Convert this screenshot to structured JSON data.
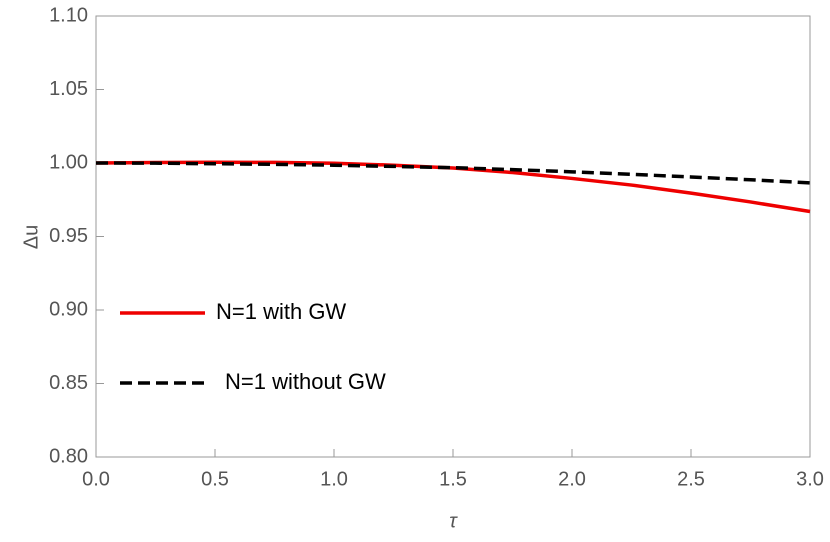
{
  "chart_data": {
    "type": "line",
    "xlabel": "τ",
    "ylabel": "Δu",
    "x": [
      0,
      0.25,
      0.5,
      0.75,
      1.0,
      1.25,
      1.5,
      1.75,
      2.0,
      2.25,
      2.5,
      2.75,
      3.0
    ],
    "series": [
      {
        "name": "N=1 with GW",
        "color": "#ee0000",
        "dash": false,
        "values": [
          1.0,
          1.0003,
          1.0005,
          1.0004,
          0.9998,
          0.9985,
          0.9966,
          0.9935,
          0.9895,
          0.985,
          0.9795,
          0.9735,
          0.967
        ]
      },
      {
        "name": "N=1 without GW",
        "color": "#000000",
        "dash": true,
        "values": [
          1.0,
          0.9999,
          0.9995,
          0.9991,
          0.9985,
          0.9977,
          0.9968,
          0.9955,
          0.994,
          0.9923,
          0.9905,
          0.9886,
          0.9865
        ]
      }
    ],
    "xlim": [
      0,
      3
    ],
    "ylim": [
      0.8,
      1.1
    ],
    "xticks": [
      {
        "value": 0,
        "label": "0.0"
      },
      {
        "value": 0.5,
        "label": "0.5"
      },
      {
        "value": 1,
        "label": "1.0"
      },
      {
        "value": 1.5,
        "label": "1.5"
      },
      {
        "value": 2,
        "label": "2.0"
      },
      {
        "value": 2.5,
        "label": "2.5"
      },
      {
        "value": 3,
        "label": "3.0"
      }
    ],
    "yticks": [
      {
        "value": 0.8,
        "label": "0.80"
      },
      {
        "value": 0.85,
        "label": "0.85"
      },
      {
        "value": 0.9,
        "label": "0.90"
      },
      {
        "value": 0.95,
        "label": "0.95"
      },
      {
        "value": 1.0,
        "label": "1.00"
      },
      {
        "value": 1.05,
        "label": "1.05"
      },
      {
        "value": 1.1,
        "label": "1.10"
      }
    ]
  }
}
